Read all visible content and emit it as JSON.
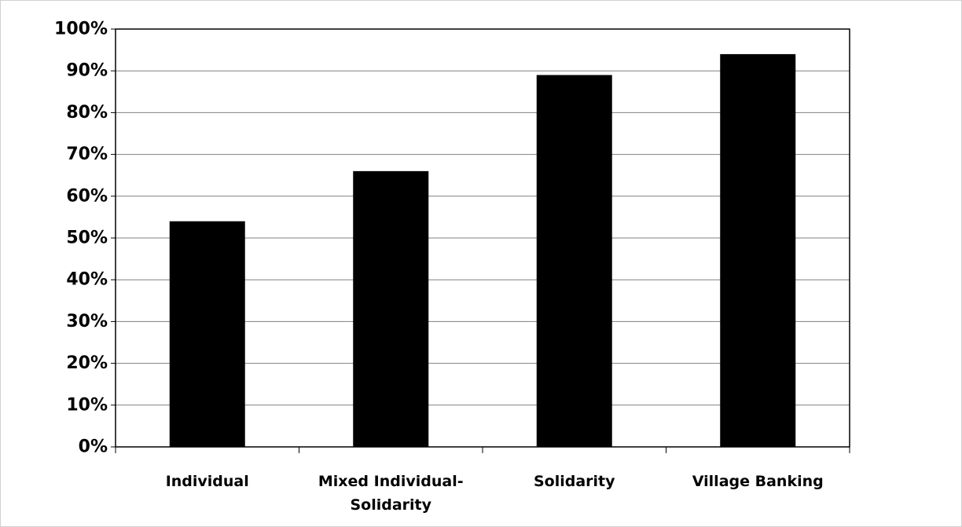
{
  "chart_data": {
    "type": "bar",
    "categories": [
      [
        "Individual"
      ],
      [
        "Mixed Individual-",
        "Solidarity"
      ],
      [
        "Solidarity"
      ],
      [
        "Village Banking"
      ]
    ],
    "values": [
      54,
      66,
      89,
      94
    ],
    "ylim": [
      0,
      100
    ],
    "y_ticks": [
      0,
      10,
      20,
      30,
      40,
      50,
      60,
      70,
      80,
      90,
      100
    ],
    "y_tick_suffix": "%",
    "grid": true,
    "bar_color": "#000000",
    "grid_color": "#808080",
    "title": "",
    "xlabel": "",
    "ylabel": ""
  }
}
